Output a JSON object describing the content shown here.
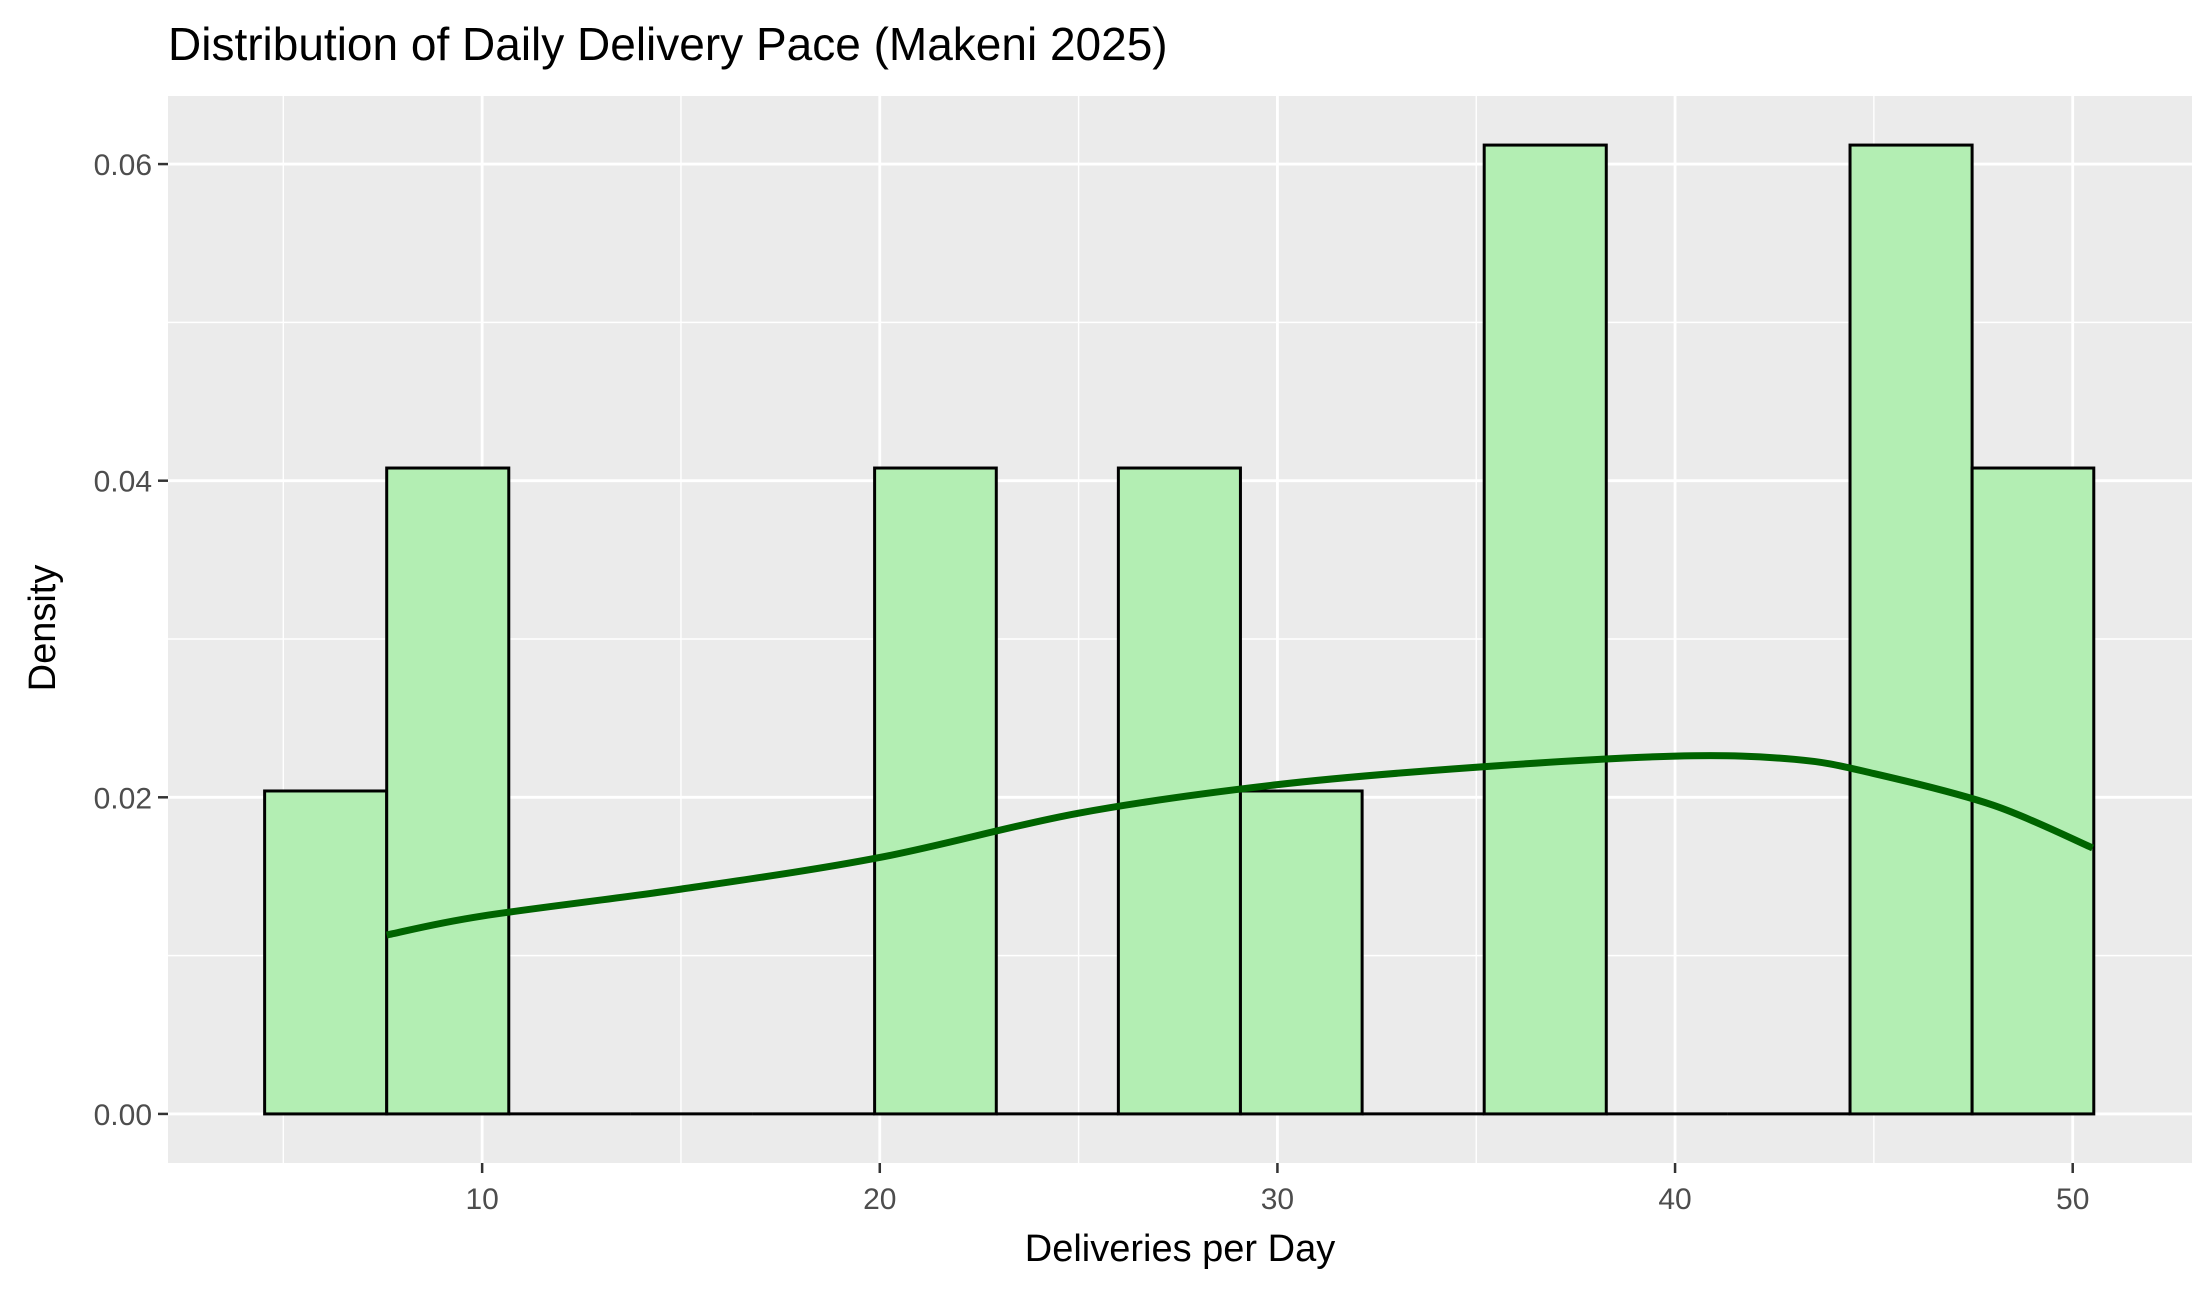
{
  "chart_data": {
    "type": "histogram",
    "title": "Distribution of Daily Delivery Pace (Makeni 2025)",
    "xlabel": "Deliveries per Day",
    "ylabel": "Density",
    "xlim": [
      2.1,
      53.0
    ],
    "ylim": [
      -0.0031,
      0.0643
    ],
    "x_ticks": [
      10,
      20,
      30,
      40,
      50
    ],
    "x_tick_labels": [
      "10",
      "20",
      "30",
      "40",
      "50"
    ],
    "y_ticks": [
      0.0,
      0.02,
      0.04,
      0.06
    ],
    "y_tick_labels": [
      "0.00",
      "0.02",
      "0.04",
      "0.06"
    ],
    "bins": [
      {
        "x0": 4.53,
        "x1": 7.6,
        "density": 0.0204
      },
      {
        "x0": 7.6,
        "x1": 10.67,
        "density": 0.0408
      },
      {
        "x0": 10.67,
        "x1": 13.73,
        "density": 0.0
      },
      {
        "x0": 13.73,
        "x1": 16.8,
        "density": 0.0
      },
      {
        "x0": 16.8,
        "x1": 19.87,
        "density": 0.0
      },
      {
        "x0": 19.87,
        "x1": 22.93,
        "density": 0.0408
      },
      {
        "x0": 22.93,
        "x1": 26.0,
        "density": 0.0
      },
      {
        "x0": 26.0,
        "x1": 29.07,
        "density": 0.0408
      },
      {
        "x0": 29.07,
        "x1": 32.13,
        "density": 0.0204
      },
      {
        "x0": 32.13,
        "x1": 35.2,
        "density": 0.0
      },
      {
        "x0": 35.2,
        "x1": 38.27,
        "density": 0.0612
      },
      {
        "x0": 38.27,
        "x1": 41.33,
        "density": 0.0
      },
      {
        "x0": 41.33,
        "x1": 44.4,
        "density": 0.0
      },
      {
        "x0": 44.4,
        "x1": 47.47,
        "density": 0.0612
      },
      {
        "x0": 47.47,
        "x1": 50.53,
        "density": 0.0408
      }
    ],
    "density_curve": {
      "x": [
        7.6,
        10,
        15,
        20,
        25,
        30,
        35,
        40,
        43,
        45,
        48,
        50.5
      ],
      "y": [
        0.0113,
        0.0125,
        0.0142,
        0.0162,
        0.019,
        0.0208,
        0.0219,
        0.0226,
        0.0224,
        0.0215,
        0.0195,
        0.0168
      ]
    },
    "colors": {
      "panel_background": "#EBEBEB",
      "grid_major": "#FFFFFF",
      "bar_fill": "#B3EEB3",
      "bar_stroke": "#000000",
      "density_line": "#006400",
      "text": "#000000",
      "tick_text": "#4D4D4D"
    },
    "grid": true,
    "legend": "none"
  }
}
